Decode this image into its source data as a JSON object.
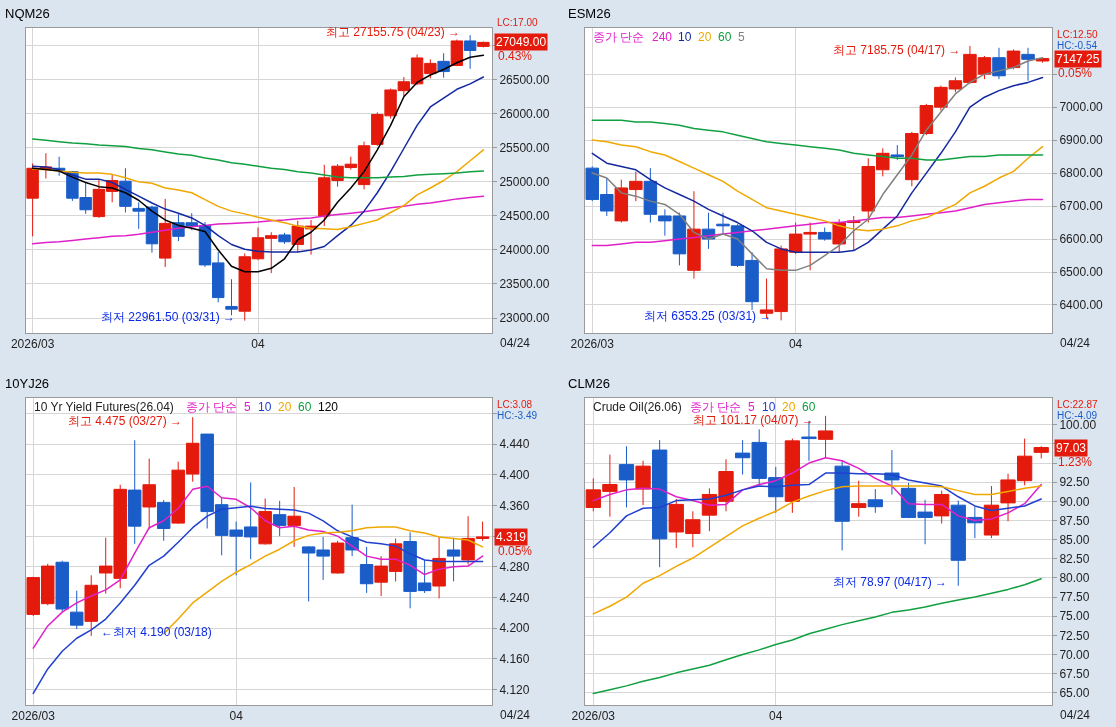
{
  "chart_data": [
    {
      "type": "candlestick",
      "title": "NQM26",
      "categories": [
        "2026/03",
        null,
        null,
        null,
        null,
        null,
        null,
        null,
        null,
        null,
        null,
        null,
        null,
        null,
        null,
        null,
        null,
        "04",
        null,
        null,
        null,
        null,
        null,
        null,
        null,
        null,
        null,
        null,
        null,
        null,
        null,
        null,
        null,
        null,
        null
      ],
      "ohlc": [
        [
          24760,
          25270,
          24200,
          25200
        ],
        [
          25180,
          25420,
          25050,
          25220
        ],
        [
          25200,
          25370,
          25090,
          25170
        ],
        [
          25150,
          25160,
          24720,
          24760
        ],
        [
          24770,
          24990,
          24530,
          24590
        ],
        [
          24490,
          25040,
          24470,
          24890
        ],
        [
          24860,
          25110,
          24700,
          25020
        ],
        [
          25010,
          25200,
          24550,
          24640
        ],
        [
          24610,
          24700,
          24310,
          24570
        ],
        [
          24630,
          24650,
          23960,
          24090
        ],
        [
          23880,
          24750,
          23750,
          24390
        ],
        [
          24400,
          24540,
          24130,
          24200
        ],
        [
          24400,
          24540,
          24290,
          24350
        ],
        [
          24360,
          24410,
          23750,
          23780
        ],
        [
          23810,
          23970,
          23230,
          23300
        ],
        [
          23170,
          23570,
          23040,
          23130
        ],
        [
          23100,
          23950,
          22961.5,
          23900
        ],
        [
          23870,
          24330,
          23850,
          24180
        ],
        [
          24170,
          24260,
          23660,
          24210
        ],
        [
          24220,
          24250,
          24090,
          24120
        ],
        [
          24080,
          24430,
          23970,
          24350
        ],
        [
          24310,
          24440,
          23930,
          24350
        ],
        [
          24500,
          25250,
          24350,
          25060
        ],
        [
          25020,
          25260,
          24930,
          25230
        ],
        [
          25210,
          25370,
          25180,
          25260
        ],
        [
          24960,
          25590,
          24890,
          25530
        ],
        [
          25550,
          26020,
          25530,
          25990
        ],
        [
          25970,
          26370,
          25930,
          26350
        ],
        [
          26340,
          26540,
          26260,
          26470
        ],
        [
          26440,
          26870,
          26420,
          26820
        ],
        [
          26590,
          26800,
          26520,
          26740
        ],
        [
          26770,
          26890,
          26530,
          26620
        ],
        [
          26710,
          27090,
          26700,
          27070
        ],
        [
          27070,
          27155.75,
          26660,
          26930
        ],
        [
          26990,
          27060,
          26975,
          27049
        ]
      ],
      "colors": [
        "#e41b0c",
        "#e41b0c",
        "#1a5dc8",
        "#1a5dc8",
        "#1a5dc8",
        "#e41b0c",
        "#e41b0c",
        "#1a5dc8",
        "#1a5dc8",
        "#1a5dc8",
        "#e41b0c",
        "#1a5dc8",
        "#1a5dc8",
        "#1a5dc8",
        "#1a5dc8",
        "#1a5dc8",
        "#e41b0c",
        "#e41b0c",
        "#e41b0c",
        "#1a5dc8",
        "#e41b0c",
        "#e41b0c",
        "#e41b0c",
        "#e41b0c",
        "#e41b0c",
        "#e41b0c",
        "#e41b0c",
        "#e41b0c",
        "#e41b0c",
        "#e41b0c",
        "#e41b0c",
        "#1a5dc8",
        "#e41b0c",
        "#1a5dc8",
        "#e41b0c"
      ],
      "series": [
        {
          "type": "line",
          "color": "#e020c8",
          "values": [
            24090,
            24110,
            24120,
            24140,
            24160,
            24180,
            24200,
            24210,
            24230,
            24260,
            24290,
            24320,
            24340,
            24360,
            24380,
            24390,
            24400,
            24410,
            24430,
            24440,
            24460,
            24470,
            24500,
            24520,
            24540,
            24560,
            24590,
            24620,
            24640,
            24670,
            24690,
            24720,
            24750,
            24770,
            24790
          ]
        },
        {
          "type": "line",
          "color": "#1428a0",
          "values": [
            25230,
            25220,
            25180,
            25100,
            25040,
            25040,
            24990,
            24890,
            24790,
            24690,
            24600,
            24540,
            24470,
            24360,
            24210,
            24080,
            24010,
            23980,
            23970,
            23970,
            23970,
            24000,
            24050,
            24210,
            24360,
            24570,
            24840,
            25150,
            25490,
            25830,
            26100,
            26230,
            26360,
            26440,
            26540
          ]
        },
        {
          "type": "line",
          "color": "#f0a800",
          "values": [
            25190,
            25180,
            25160,
            25140,
            25130,
            25130,
            25110,
            25060,
            25000,
            24980,
            24910,
            24880,
            24840,
            24740,
            24640,
            24570,
            24530,
            24480,
            24440,
            24400,
            24350,
            24320,
            24310,
            24300,
            24340,
            24390,
            24440,
            24550,
            24650,
            24810,
            24910,
            25020,
            25150,
            25310,
            25470
          ]
        },
        {
          "type": "line",
          "color": "#10a040",
          "values": [
            25630,
            25610,
            25590,
            25570,
            25560,
            25540,
            25530,
            25520,
            25490,
            25470,
            25440,
            25410,
            25390,
            25350,
            25320,
            25280,
            25260,
            25230,
            25200,
            25180,
            25150,
            25130,
            25100,
            25070,
            25060,
            25060,
            25060,
            25070,
            25080,
            25100,
            25110,
            25120,
            25130,
            25150,
            25160
          ]
        },
        {
          "type": "line",
          "color": "#000000",
          "values": [
            25200,
            25180,
            25160,
            25070,
            24990,
            24930,
            24910,
            24840,
            24730,
            24570,
            24440,
            24360,
            24320,
            24270,
            24000,
            23760,
            23680,
            23680,
            23730,
            23870,
            24150,
            24260,
            24440,
            24700,
            24910,
            25150,
            25470,
            25830,
            26250,
            26460,
            26570,
            26650,
            26750,
            26830,
            26860
          ]
        }
      ],
      "ylim": [
        22780,
        27260
      ],
      "yticks": [
        {
          "value": 23000,
          "label": "23000.00"
        },
        {
          "value": 23500,
          "label": "23500.00"
        },
        {
          "value": 24000,
          "label": "24000.00"
        },
        {
          "value": 24500,
          "label": "24500.00"
        },
        {
          "value": 25000,
          "label": "25000.00"
        },
        {
          "value": 25500,
          "label": "25500.00"
        },
        {
          "value": 26000,
          "label": "26000.00"
        },
        {
          "value": 26500,
          "label": "26500.00"
        },
        {
          "value": 27000,
          "label": null
        }
      ],
      "grid": true,
      "annotations": [
        "LC:17.00",
        "27049.00",
        "0.43%",
        "최고 27155.75 (04/23) →",
        "최저 22961.50 (03/31) →",
        "04/24"
      ]
    },
    {
      "type": "candlestick",
      "title": "ESM26",
      "legend_title": "종가 단순",
      "legend": "top left",
      "categories": [
        "2026/03",
        null,
        null,
        null,
        null,
        null,
        null,
        null,
        null,
        null,
        null,
        null,
        null,
        null,
        "04",
        null,
        null,
        null,
        null,
        null,
        null,
        null,
        null,
        null,
        null,
        null,
        null,
        null,
        null,
        null,
        null,
        null
      ],
      "ohlc": [
        [
          6815,
          6820,
          6715,
          6720
        ],
        [
          6735,
          6785,
          6670,
          6685
        ],
        [
          6655,
          6780,
          6650,
          6755
        ],
        [
          6750,
          6805,
          6715,
          6775
        ],
        [
          6775,
          6815,
          6650,
          6675
        ],
        [
          6670,
          6690,
          6610,
          6655
        ],
        [
          6670,
          6680,
          6520,
          6555
        ],
        [
          6505,
          6745,
          6480,
          6630
        ],
        [
          6630,
          6680,
          6570,
          6600
        ],
        [
          6645,
          6680,
          6615,
          6640
        ],
        [
          6640,
          6645,
          6515,
          6520
        ],
        [
          6535,
          6560,
          6385,
          6410
        ],
        [
          6375,
          6480,
          6360,
          6385
        ],
        [
          6380,
          6580,
          6353.25,
          6570
        ],
        [
          6560,
          6650,
          6555,
          6615
        ],
        [
          6615,
          6650,
          6505,
          6620
        ],
        [
          6620,
          6635,
          6595,
          6600
        ],
        [
          6585,
          6660,
          6560,
          6650
        ],
        [
          6650,
          6670,
          6565,
          6655
        ],
        [
          6685,
          6845,
          6650,
          6820
        ],
        [
          6810,
          6875,
          6790,
          6860
        ],
        [
          6855,
          6885,
          6840,
          6850
        ],
        [
          6780,
          6925,
          6760,
          6920
        ],
        [
          6920,
          7010,
          6915,
          7005
        ],
        [
          7000,
          7065,
          6990,
          7060
        ],
        [
          7055,
          7090,
          7045,
          7080
        ],
        [
          7075,
          7185.75,
          7070,
          7160
        ],
        [
          7100,
          7155,
          7085,
          7150
        ],
        [
          7150,
          7180,
          7085,
          7095
        ],
        [
          7120,
          7175,
          7115,
          7170
        ],
        [
          7160,
          7180,
          7080,
          7145
        ],
        [
          7140,
          7150,
          7135,
          7147.25
        ]
      ],
      "colors": [
        "#1a5dc8",
        "#1a5dc8",
        "#e41b0c",
        "#e41b0c",
        "#1a5dc8",
        "#1a5dc8",
        "#1a5dc8",
        "#e41b0c",
        "#1a5dc8",
        "#1a5dc8",
        "#1a5dc8",
        "#1a5dc8",
        "#e41b0c",
        "#e41b0c",
        "#e41b0c",
        "#e41b0c",
        "#1a5dc8",
        "#e41b0c",
        "#e41b0c",
        "#e41b0c",
        "#e41b0c",
        "#1a5dc8",
        "#e41b0c",
        "#e41b0c",
        "#e41b0c",
        "#e41b0c",
        "#e41b0c",
        "#e41b0c",
        "#1a5dc8",
        "#e41b0c",
        "#1a5dc8",
        "#e41b0c"
      ],
      "series": [
        {
          "type": "line",
          "name": "240",
          "color": "#e020c8",
          "values": [
            6580,
            6580,
            6585,
            6590,
            6590,
            6595,
            6600,
            6605,
            6610,
            6615,
            6620,
            6625,
            6630,
            6635,
            6640,
            6645,
            6650,
            6650,
            6655,
            6660,
            6665,
            6665,
            6670,
            6675,
            6680,
            6685,
            6695,
            6705,
            6710,
            6715,
            6720,
            6720
          ]
        },
        {
          "type": "line",
          "name": "10",
          "color": "#1428a0",
          "values": [
            6860,
            6830,
            6820,
            6810,
            6780,
            6755,
            6735,
            6715,
            6690,
            6670,
            6650,
            6625,
            6590,
            6570,
            6560,
            6560,
            6560,
            6560,
            6565,
            6590,
            6630,
            6670,
            6740,
            6800,
            6860,
            6925,
            7000,
            7030,
            7050,
            7065,
            7075,
            7090
          ]
        },
        {
          "type": "line",
          "name": "20",
          "color": "#f0a800",
          "values": [
            6900,
            6895,
            6885,
            6880,
            6865,
            6855,
            6835,
            6815,
            6795,
            6775,
            6745,
            6720,
            6695,
            6685,
            6675,
            6665,
            6655,
            6640,
            6630,
            6625,
            6630,
            6640,
            6655,
            6665,
            6685,
            6705,
            6740,
            6760,
            6785,
            6805,
            6845,
            6880
          ]
        },
        {
          "type": "line",
          "name": "60",
          "color": "#10a040",
          "values": [
            6960,
            6960,
            6960,
            6955,
            6955,
            6950,
            6945,
            6935,
            6930,
            6925,
            6915,
            6905,
            6895,
            6890,
            6885,
            6880,
            6875,
            6870,
            6860,
            6855,
            6850,
            6845,
            6845,
            6840,
            6840,
            6845,
            6850,
            6850,
            6855,
            6855,
            6855,
            6855
          ]
        },
        {
          "type": "line",
          "name": "5",
          "color": "#808080",
          "values": [
            6800,
            6785,
            6740,
            6730,
            6715,
            6705,
            6675,
            6620,
            6600,
            6615,
            6600,
            6555,
            6510,
            6505,
            6505,
            6520,
            6550,
            6580,
            6625,
            6660,
            6735,
            6795,
            6855,
            6930,
            6985,
            7040,
            7075,
            7100,
            7110,
            7120,
            7140,
            7150
          ]
        }
      ],
      "ylim": [
        6315,
        7240
      ],
      "yticks": [
        {
          "value": 6400,
          "label": "6400.00"
        },
        {
          "value": 6500,
          "label": "6500.00"
        },
        {
          "value": 6600,
          "label": "6600.00"
        },
        {
          "value": 6700,
          "label": "6700.00"
        },
        {
          "value": 6800,
          "label": "6800.00"
        },
        {
          "value": 6900,
          "label": "6900.00"
        },
        {
          "value": 7000,
          "label": "7000.00"
        },
        {
          "value": 7100,
          "label": null
        }
      ],
      "grid": true,
      "annotations": [
        "LC:12.50",
        "HC:-0.54",
        "7147.25",
        "0.05%",
        "최고 7185.75 (04/17) →",
        "최저 6353.25 (03/31) →",
        "04/24"
      ]
    },
    {
      "type": "candlestick",
      "title": "10YJ26",
      "subtitle": "10 Yr Yield Futures(26.04)",
      "legend_title": "종가 단순",
      "legend": "top",
      "categories": [
        "2026/03",
        null,
        null,
        null,
        null,
        null,
        null,
        null,
        null,
        null,
        null,
        null,
        null,
        null,
        "04",
        null,
        null,
        null,
        null,
        null,
        null,
        null,
        null,
        null,
        null,
        null,
        null,
        null,
        null,
        null,
        null,
        null
      ],
      "ohlc": [
        [
          4.218,
          4.267,
          4.216,
          4.266
        ],
        [
          4.232,
          4.284,
          4.23,
          4.281
        ],
        [
          4.286,
          4.288,
          4.221,
          4.225
        ],
        [
          4.221,
          4.249,
          4.199,
          4.204
        ],
        [
          4.209,
          4.269,
          4.19,
          4.256
        ],
        [
          4.272,
          4.318,
          4.245,
          4.281
        ],
        [
          4.265,
          4.387,
          4.252,
          4.381
        ],
        [
          4.38,
          4.445,
          4.31,
          4.333
        ],
        [
          4.358,
          4.421,
          4.329,
          4.387
        ],
        [
          4.364,
          4.367,
          4.314,
          4.33
        ],
        [
          4.337,
          4.417,
          4.336,
          4.406
        ],
        [
          4.401,
          4.475,
          4.391,
          4.441
        ],
        [
          4.453,
          4.453,
          4.33,
          4.352
        ],
        [
          4.361,
          4.37,
          4.295,
          4.321
        ],
        [
          4.328,
          4.339,
          4.269,
          4.32
        ],
        [
          4.332,
          4.39,
          4.29,
          4.319
        ],
        [
          4.31,
          4.369,
          4.309,
          4.352
        ],
        [
          4.348,
          4.366,
          4.32,
          4.334
        ],
        [
          4.334,
          4.384,
          4.306,
          4.346
        ],
        [
          4.306,
          4.307,
          4.235,
          4.298
        ],
        [
          4.302,
          4.319,
          4.263,
          4.294
        ],
        [
          4.272,
          4.314,
          4.271,
          4.311
        ],
        [
          4.318,
          4.361,
          4.294,
          4.302
        ],
        [
          4.283,
          4.306,
          4.246,
          4.258
        ],
        [
          4.26,
          4.294,
          4.242,
          4.281
        ],
        [
          4.274,
          4.317,
          4.261,
          4.31
        ],
        [
          4.313,
          4.325,
          4.226,
          4.248
        ],
        [
          4.259,
          4.289,
          4.246,
          4.249
        ],
        [
          4.255,
          4.319,
          4.239,
          4.291
        ],
        [
          4.302,
          4.318,
          4.261,
          4.294
        ],
        [
          4.289,
          4.346,
          4.283,
          4.317
        ],
        [
          4.317,
          4.339,
          4.314,
          4.319
        ]
      ],
      "colors": [
        "#e41b0c",
        "#e41b0c",
        "#1a5dc8",
        "#1a5dc8",
        "#e41b0c",
        "#e41b0c",
        "#e41b0c",
        "#1a5dc8",
        "#e41b0c",
        "#1a5dc8",
        "#e41b0c",
        "#e41b0c",
        "#1a5dc8",
        "#1a5dc8",
        "#1a5dc8",
        "#1a5dc8",
        "#e41b0c",
        "#1a5dc8",
        "#e41b0c",
        "#1a5dc8",
        "#1a5dc8",
        "#e41b0c",
        "#1a5dc8",
        "#1a5dc8",
        "#e41b0c",
        "#e41b0c",
        "#1a5dc8",
        "#1a5dc8",
        "#e41b0c",
        "#1a5dc8",
        "#e41b0c",
        "#e41b0c"
      ],
      "series": [
        {
          "type": "line",
          "name": "5",
          "color": "#e020c8",
          "values": [
            4.174,
            4.203,
            4.221,
            4.233,
            4.242,
            4.25,
            4.263,
            4.298,
            4.331,
            4.34,
            4.356,
            4.381,
            4.385,
            4.37,
            4.368,
            4.357,
            4.34,
            4.331,
            4.333,
            4.328,
            4.326,
            4.32,
            4.307,
            4.294,
            4.29,
            4.29,
            4.282,
            4.27,
            4.277,
            4.28,
            4.281,
            4.294
          ]
        },
        {
          "type": "line",
          "name": "10",
          "color": "#2040d0",
          "values": [
            4.115,
            4.147,
            4.17,
            4.187,
            4.198,
            4.212,
            4.233,
            4.256,
            4.282,
            4.294,
            4.312,
            4.331,
            4.346,
            4.355,
            4.357,
            4.359,
            4.356,
            4.355,
            4.354,
            4.35,
            4.34,
            4.327,
            4.319,
            4.312,
            4.31,
            4.307,
            4.297,
            4.289,
            4.287,
            4.287,
            4.287,
            4.287
          ]
        },
        {
          "type": "line",
          "name": "20",
          "color": "#f0a800",
          "values": [
            null,
            null,
            null,
            null,
            null,
            null,
            null,
            null,
            null,
            4.193,
            4.212,
            4.233,
            4.247,
            4.261,
            4.273,
            4.283,
            4.294,
            4.303,
            4.314,
            4.321,
            4.324,
            4.325,
            4.327,
            4.331,
            4.332,
            4.332,
            4.327,
            4.324,
            4.319,
            4.317,
            4.315,
            4.306
          ]
        },
        {
          "type": "line",
          "name": "60",
          "color": "#10a040",
          "values": [
            null,
            null,
            null,
            null,
            null,
            null,
            null,
            null,
            null,
            null,
            null,
            null,
            null,
            null,
            null,
            null,
            null,
            null,
            null,
            null,
            null,
            null,
            null,
            null,
            null,
            null,
            null,
            null,
            null,
            null,
            null,
            null
          ]
        },
        {
          "type": "line",
          "name": "120",
          "color": "#000000",
          "values": [
            null,
            null,
            null,
            null,
            null,
            null,
            null,
            null,
            null,
            null,
            null,
            null,
            null,
            null,
            null,
            null,
            null,
            null,
            null,
            null,
            null,
            null,
            null,
            null,
            null,
            null,
            null,
            null,
            null,
            null,
            null,
            null
          ]
        }
      ],
      "ylim": [
        4.1,
        4.5
      ],
      "yticks": [
        {
          "value": 4.12,
          "label": "4.120"
        },
        {
          "value": 4.16,
          "label": "4.160"
        },
        {
          "value": 4.2,
          "label": "4.200"
        },
        {
          "value": 4.24,
          "label": "4.240"
        },
        {
          "value": 4.28,
          "label": "4.280"
        },
        {
          "value": 4.32,
          "label": null
        },
        {
          "value": 4.36,
          "label": "4.360"
        },
        {
          "value": 4.4,
          "label": "4.400"
        },
        {
          "value": 4.44,
          "label": "4.440"
        },
        {
          "value": 4.48,
          "label": null
        }
      ],
      "grid": true,
      "annotations": [
        "LC:3.08",
        "HC:-3.49",
        "4.319",
        "0.05%",
        "최고 4.475 (03/27) →",
        "←최저 4.190 (03/18)",
        "04/24"
      ]
    },
    {
      "type": "candlestick",
      "title": "CLM26",
      "subtitle": "Crude Oil(26.06)",
      "legend_title": "종가 단순",
      "legend": "top left",
      "categories": [
        "2026/03",
        null,
        null,
        null,
        null,
        null,
        null,
        null,
        null,
        null,
        null,
        "04",
        null,
        null,
        null,
        null,
        null,
        null,
        null,
        null,
        null,
        null,
        null,
        null,
        null,
        null,
        null,
        null
      ],
      "ohlc": [
        [
          89.2,
          93.0,
          88.7,
          91.5
        ],
        [
          91.3,
          96.1,
          88.0,
          92.2
        ],
        [
          94.8,
          97.2,
          89.2,
          92.8
        ],
        [
          91.6,
          95.3,
          89.5,
          94.6
        ],
        [
          96.7,
          98.0,
          81.4,
          85.1
        ],
        [
          86.0,
          90.3,
          83.9,
          89.6
        ],
        [
          85.8,
          88.7,
          84.0,
          87.6
        ],
        [
          88.2,
          91.7,
          86.1,
          90.9
        ],
        [
          90.0,
          95.5,
          88.7,
          93.9
        ],
        [
          96.3,
          98.0,
          93.5,
          95.7
        ],
        [
          97.7,
          99.4,
          92.2,
          93.0
        ],
        [
          93.1,
          94.5,
          88.5,
          90.6
        ],
        [
          90.0,
          98.2,
          88.5,
          97.9
        ],
        [
          98.4,
          100.5,
          95.3,
          98.2
        ],
        [
          98.1,
          101.17,
          95.7,
          99.2
        ],
        [
          94.6,
          95.3,
          83.6,
          87.4
        ],
        [
          89.2,
          92.7,
          88.0,
          89.7
        ],
        [
          90.2,
          91.6,
          88.5,
          89.3
        ],
        [
          93.7,
          96.7,
          90.9,
          92.8
        ],
        [
          91.7,
          92.4,
          87.8,
          87.9
        ],
        [
          88.6,
          90.2,
          84.4,
          87.9
        ],
        [
          88.1,
          91.4,
          87.1,
          90.9
        ],
        [
          89.5,
          90.1,
          78.97,
          82.3
        ],
        [
          87.9,
          89.3,
          85.2,
          87.2
        ],
        [
          85.6,
          92.0,
          85.2,
          89.5
        ],
        [
          89.8,
          93.6,
          87.4,
          92.8
        ],
        [
          92.7,
          98.2,
          92.1,
          95.9
        ],
        [
          96.4,
          97.2,
          95.6,
          97.03
        ]
      ],
      "colors": [
        "#e41b0c",
        "#e41b0c",
        "#1a5dc8",
        "#e41b0c",
        "#1a5dc8",
        "#e41b0c",
        "#e41b0c",
        "#e41b0c",
        "#e41b0c",
        "#1a5dc8",
        "#1a5dc8",
        "#1a5dc8",
        "#e41b0c",
        "#1a5dc8",
        "#e41b0c",
        "#1a5dc8",
        "#e41b0c",
        "#1a5dc8",
        "#1a5dc8",
        "#1a5dc8",
        "#1a5dc8",
        "#e41b0c",
        "#1a5dc8",
        "#1a5dc8",
        "#e41b0c",
        "#e41b0c",
        "#e41b0c",
        "#e41b0c"
      ],
      "series": [
        {
          "type": "line",
          "name": "5",
          "color": "#e020c8",
          "values": [
            90.1,
            90.9,
            91.5,
            91.7,
            91.6,
            90.6,
            90.1,
            89.5,
            89.6,
            91.5,
            92.2,
            92.7,
            93.7,
            95.0,
            95.7,
            95.3,
            94.3,
            93.0,
            92.0,
            89.7,
            89.6,
            89.6,
            88.1,
            87.5,
            87.7,
            88.5,
            89.7,
            92.2
          ]
        },
        {
          "type": "line",
          "name": "10",
          "color": "#2040d0",
          "values": [
            84.0,
            85.9,
            88.1,
            89.1,
            89.2,
            90.1,
            90.2,
            90.3,
            90.8,
            91.5,
            92.0,
            91.9,
            92.1,
            92.2,
            93.7,
            93.7,
            93.6,
            93.6,
            93.5,
            92.8,
            92.4,
            92.0,
            90.6,
            89.4,
            88.8,
            89.1,
            89.4,
            90.3
          ]
        },
        {
          "type": "line",
          "name": "20",
          "color": "#f0a800",
          "values": [
            75.3,
            76.3,
            77.5,
            79.3,
            80.3,
            81.5,
            82.6,
            84.0,
            85.4,
            86.8,
            87.8,
            88.7,
            89.9,
            90.7,
            91.4,
            91.9,
            92.0,
            92.0,
            92.0,
            92.0,
            92.0,
            91.9,
            91.4,
            90.9,
            90.9,
            91.3,
            91.7,
            92.0
          ]
        },
        {
          "type": "line",
          "name": "60",
          "color": "#10a040",
          "values": [
            64.9,
            65.4,
            65.9,
            66.5,
            67.0,
            67.6,
            68.1,
            68.6,
            69.3,
            70.0,
            70.6,
            71.3,
            71.9,
            72.7,
            73.3,
            73.9,
            74.4,
            74.9,
            75.5,
            75.8,
            76.2,
            76.7,
            77.1,
            77.5,
            78.0,
            78.5,
            79.1,
            79.9
          ]
        }
      ],
      "ylim": [
        63.4,
        103.5
      ],
      "yticks": [
        {
          "value": 65,
          "label": "65.00"
        },
        {
          "value": 67.5,
          "label": "67.50"
        },
        {
          "value": 70,
          "label": "70.00"
        },
        {
          "value": 72.5,
          "label": "72.50"
        },
        {
          "value": 75,
          "label": "75.00"
        },
        {
          "value": 77.5,
          "label": "77.50"
        },
        {
          "value": 80,
          "label": "80.00"
        },
        {
          "value": 82.5,
          "label": "82.50"
        },
        {
          "value": 85,
          "label": "85.00"
        },
        {
          "value": 87.5,
          "label": "87.50"
        },
        {
          "value": 90,
          "label": "90.00"
        },
        {
          "value": 92.5,
          "label": "92.50"
        },
        {
          "value": 95,
          "label": null
        },
        {
          "value": 97.5,
          "label": null
        },
        {
          "value": 100,
          "label": "100.00"
        }
      ],
      "grid": true,
      "annotations": [
        "LC:22.87",
        "HC:-4.09",
        "97.03",
        "1.23%",
        "최고 101.17 (04/07) →",
        "최저 78.97 (04/17) →",
        "04/24"
      ]
    }
  ]
}
